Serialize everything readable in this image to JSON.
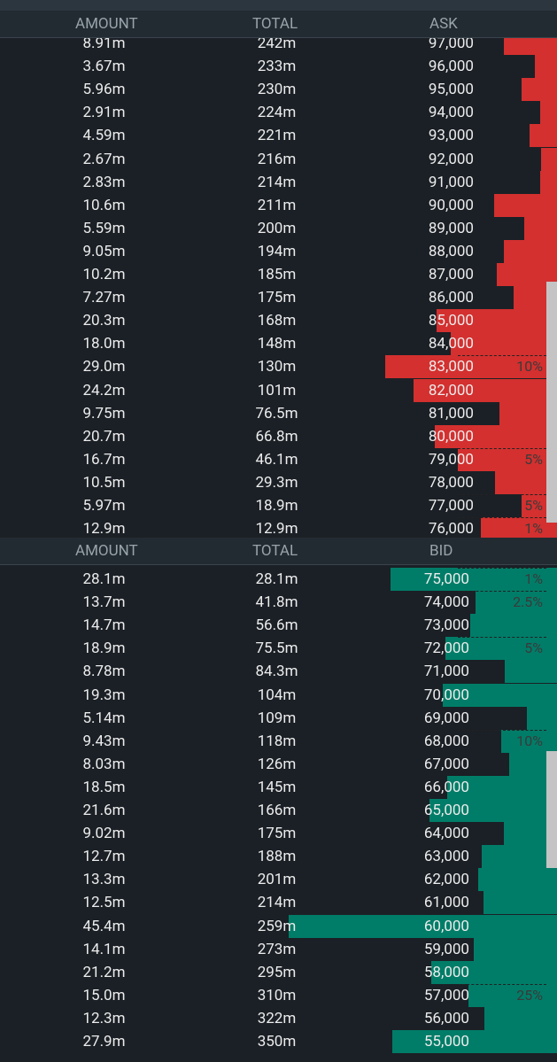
{
  "ask_book": {
    "header": {
      "amount": "AMOUNT",
      "total": "TOTAL",
      "price": "ASK"
    },
    "rows": [
      {
        "amount": "8.91m",
        "total": "242m",
        "price": "97,000"
      },
      {
        "amount": "3.67m",
        "total": "233m",
        "price": "96,000"
      },
      {
        "amount": "5.96m",
        "total": "230m",
        "price": "95,000"
      },
      {
        "amount": "2.91m",
        "total": "224m",
        "price": "94,000"
      },
      {
        "amount": "4.59m",
        "total": "221m",
        "price": "93,000"
      },
      {
        "amount": "2.67m",
        "total": "216m",
        "price": "92,000"
      },
      {
        "amount": "2.83m",
        "total": "214m",
        "price": "91,000"
      },
      {
        "amount": "10.6m",
        "total": "211m",
        "price": "90,000"
      },
      {
        "amount": "5.59m",
        "total": "200m",
        "price": "89,000"
      },
      {
        "amount": "9.05m",
        "total": "194m",
        "price": "88,000"
      },
      {
        "amount": "10.2m",
        "total": "185m",
        "price": "87,000"
      },
      {
        "amount": "7.27m",
        "total": "175m",
        "price": "86,000"
      },
      {
        "amount": "20.3m",
        "total": "168m",
        "price": "85,000"
      },
      {
        "amount": "18.0m",
        "total": "148m",
        "price": "84,000"
      },
      {
        "amount": "29.0m",
        "total": "130m",
        "price": "83,000",
        "marker": "10%"
      },
      {
        "amount": "24.2m",
        "total": "101m",
        "price": "82,000"
      },
      {
        "amount": "9.75m",
        "total": "76.5m",
        "price": "81,000"
      },
      {
        "amount": "20.7m",
        "total": "66.8m",
        "price": "80,000"
      },
      {
        "amount": "16.7m",
        "total": "46.1m",
        "price": "79,000",
        "marker": "5%"
      },
      {
        "amount": "10.5m",
        "total": "29.3m",
        "price": "78,000"
      },
      {
        "amount": "5.97m",
        "total": "18.9m",
        "price": "77,000",
        "marker": "5%"
      },
      {
        "amount": "12.9m",
        "total": "12.9m",
        "price": "76,000",
        "marker": "1%"
      }
    ]
  },
  "bid_book": {
    "header": {
      "amount": "AMOUNT",
      "total": "TOTAL",
      "price": "BID"
    },
    "rows": [
      {
        "amount": "28.1m",
        "total": "28.1m",
        "price": "75,000",
        "marker": "1%"
      },
      {
        "amount": "13.7m",
        "total": "41.8m",
        "price": "74,000",
        "marker": "2.5%"
      },
      {
        "amount": "14.7m",
        "total": "56.6m",
        "price": "73,000"
      },
      {
        "amount": "18.9m",
        "total": "75.5m",
        "price": "72,000",
        "marker": "5%"
      },
      {
        "amount": "8.78m",
        "total": "84.3m",
        "price": "71,000"
      },
      {
        "amount": "19.3m",
        "total": "104m",
        "price": "70,000"
      },
      {
        "amount": "5.14m",
        "total": "109m",
        "price": "69,000"
      },
      {
        "amount": "9.43m",
        "total": "118m",
        "price": "68,000",
        "marker": "10%"
      },
      {
        "amount": "8.03m",
        "total": "126m",
        "price": "67,000"
      },
      {
        "amount": "18.5m",
        "total": "145m",
        "price": "66,000"
      },
      {
        "amount": "21.6m",
        "total": "166m",
        "price": "65,000"
      },
      {
        "amount": "9.02m",
        "total": "175m",
        "price": "64,000"
      },
      {
        "amount": "12.7m",
        "total": "188m",
        "price": "63,000"
      },
      {
        "amount": "13.3m",
        "total": "201m",
        "price": "62,000"
      },
      {
        "amount": "12.5m",
        "total": "214m",
        "price": "61,000"
      },
      {
        "amount": "45.4m",
        "total": "259m",
        "price": "60,000"
      },
      {
        "amount": "14.1m",
        "total": "273m",
        "price": "59,000"
      },
      {
        "amount": "21.2m",
        "total": "295m",
        "price": "58,000"
      },
      {
        "amount": "15.0m",
        "total": "310m",
        "price": "57,000",
        "marker": "25%"
      },
      {
        "amount": "12.3m",
        "total": "322m",
        "price": "56,000"
      },
      {
        "amount": "27.9m",
        "total": "350m",
        "price": "55,000"
      }
    ]
  }
}
